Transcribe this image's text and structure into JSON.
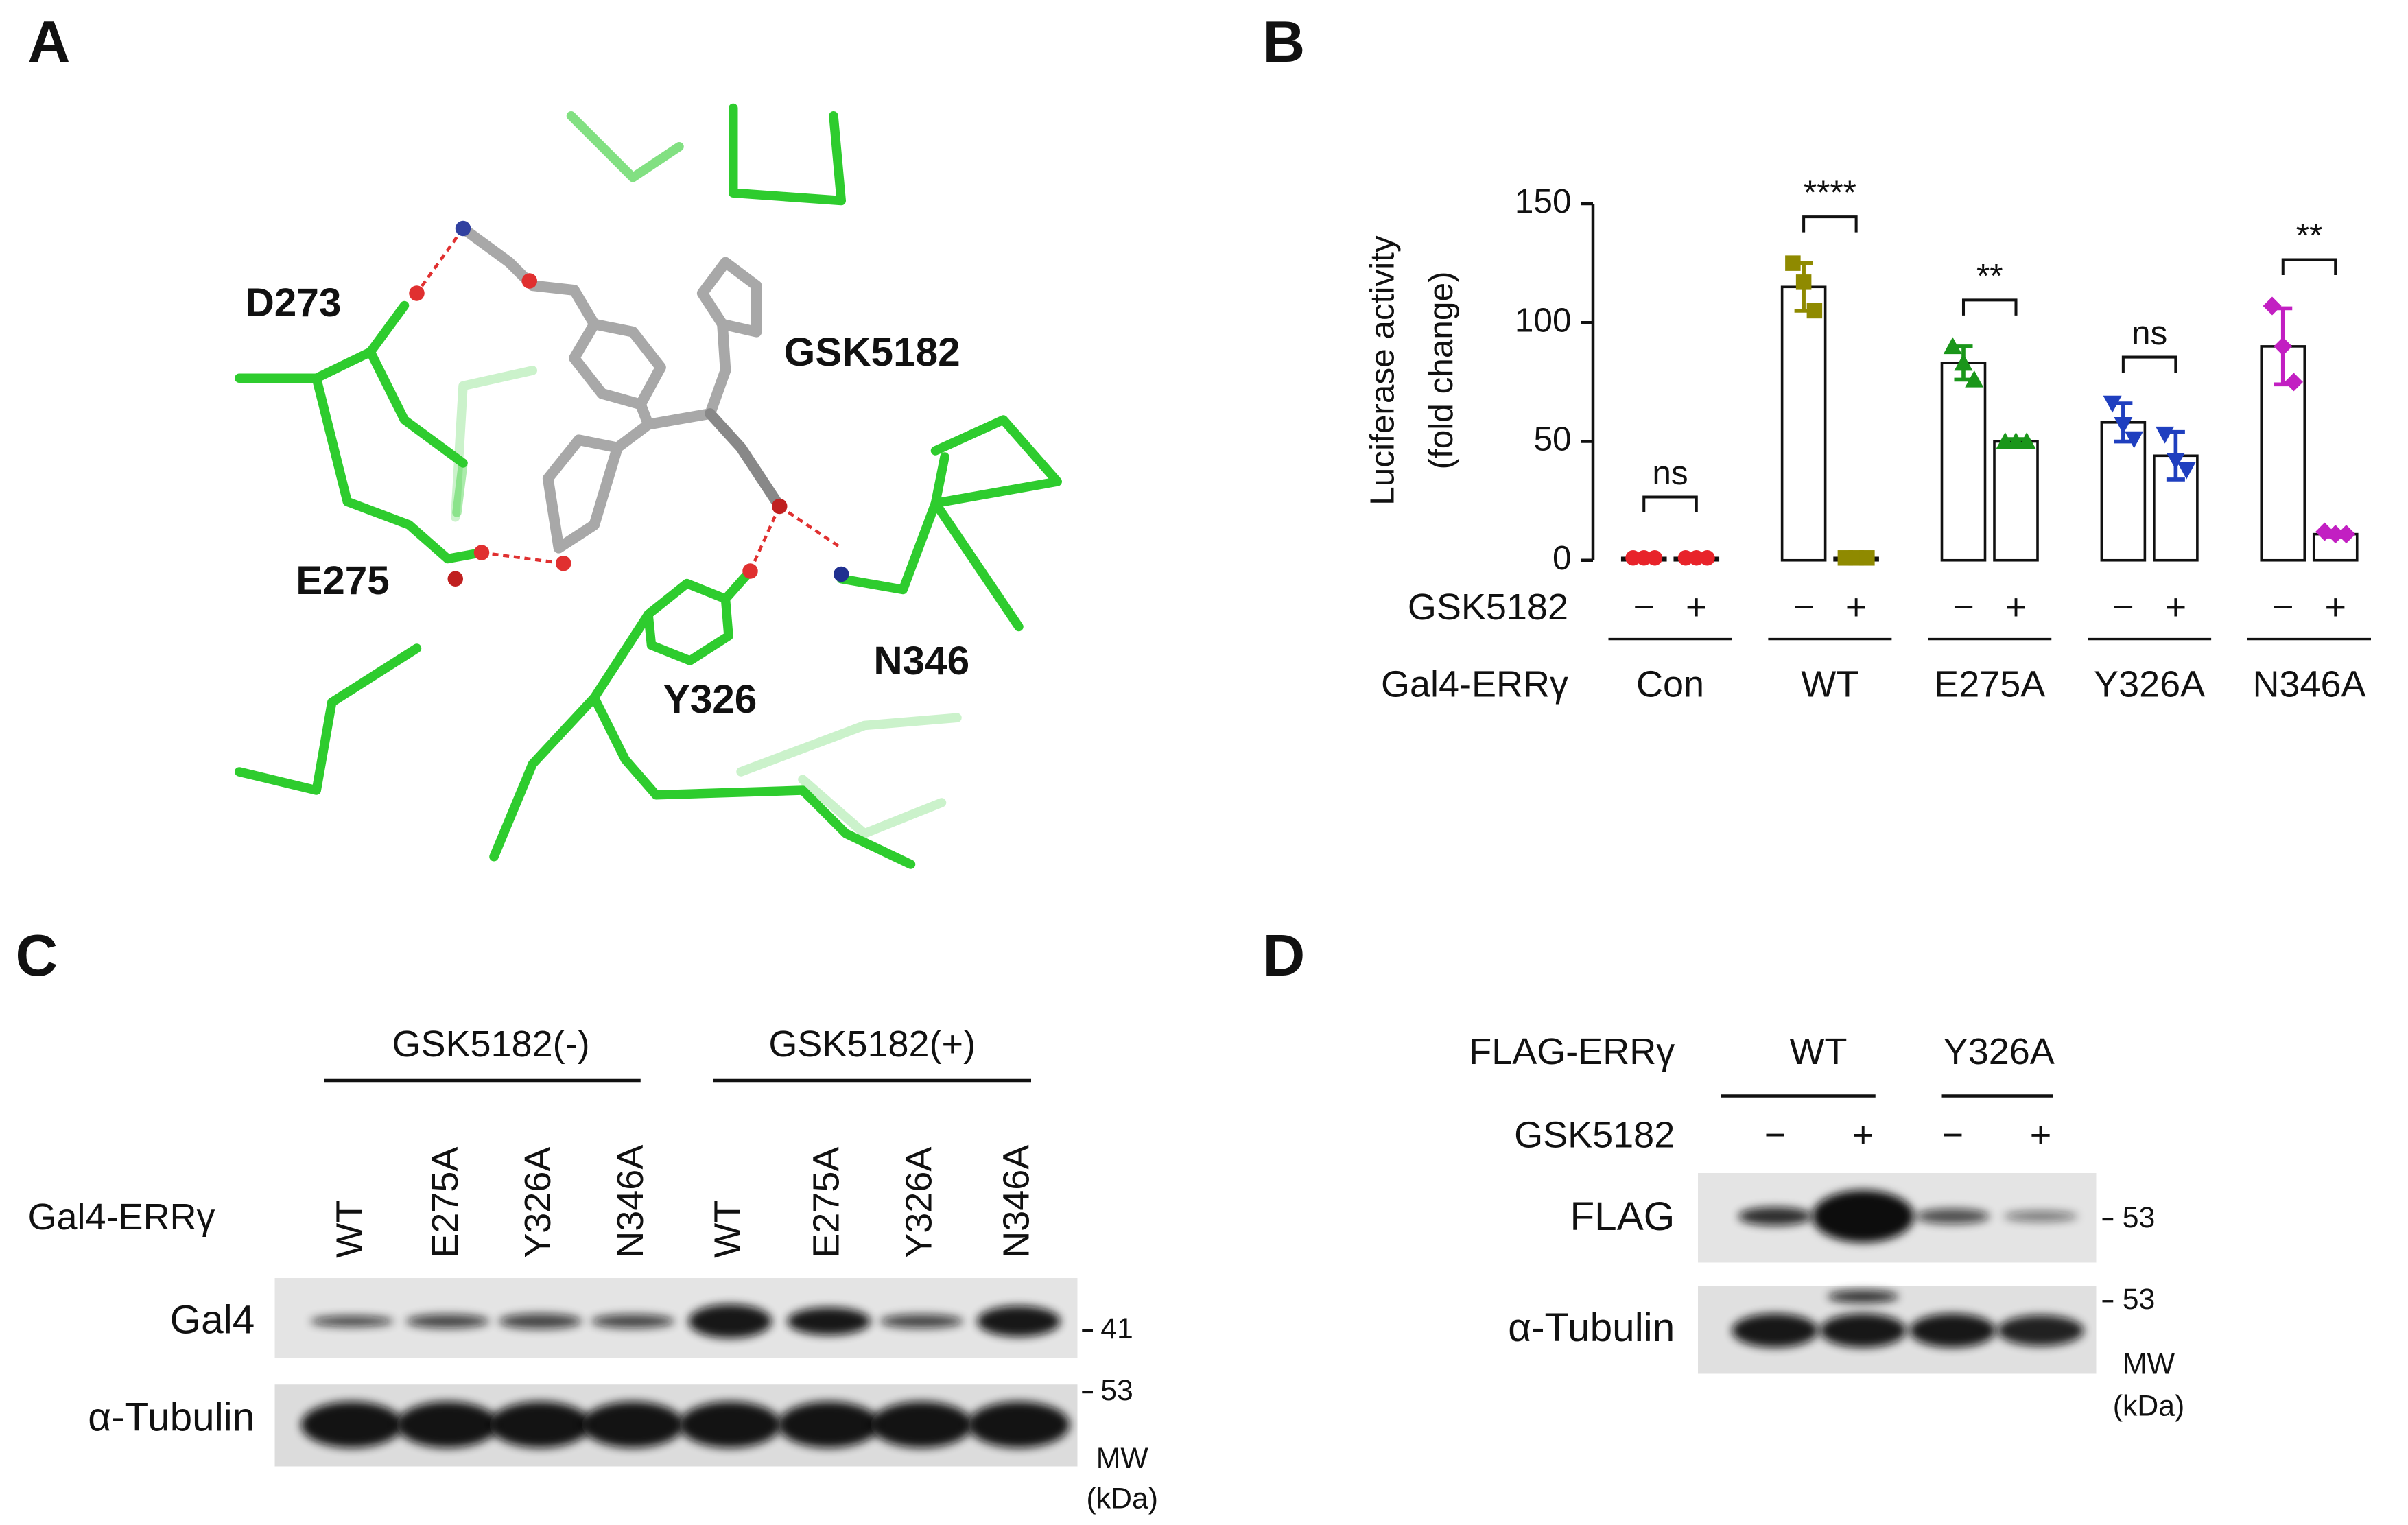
{
  "panel_a": {
    "letter": "A",
    "labels": [
      "D273",
      "GSK5182",
      "E275",
      "Y326",
      "N346"
    ]
  },
  "chart_data": {
    "type": "bar",
    "letter": "B",
    "y_label": [
      "Luciferase activity",
      "(fold change)"
    ],
    "ylim": [
      0,
      150
    ],
    "yticks": [
      0,
      50,
      100,
      150
    ],
    "row_labels": [
      "GSK5182",
      "Gal4-ERRγ"
    ],
    "treatments": [
      "−",
      "+"
    ],
    "groups": [
      {
        "name": "Con",
        "color": "#e8232a",
        "marker": "circle",
        "significance": "ns",
        "values": [
          1,
          1
        ],
        "errors": [
          0,
          0
        ],
        "points": [
          [
            1,
            1,
            1
          ],
          [
            1,
            1,
            1
          ]
        ]
      },
      {
        "name": "WT",
        "color": "#8f8a00",
        "marker": "square",
        "significance": "****",
        "values": [
          115,
          1
        ],
        "errors": [
          10,
          0
        ],
        "points": [
          [
            125,
            117,
            105
          ],
          [
            1,
            1,
            1
          ]
        ]
      },
      {
        "name": "E275A",
        "color": "#1a961a",
        "marker": "triangle-up",
        "significance": "**",
        "values": [
          83,
          50
        ],
        "errors": [
          7,
          1
        ],
        "points": [
          [
            90,
            83,
            76
          ],
          [
            50,
            50,
            50
          ]
        ]
      },
      {
        "name": "Y326A",
        "color": "#1f3fbf",
        "marker": "triangle-down",
        "significance": "ns",
        "values": [
          58,
          44
        ],
        "errors": [
          8,
          10
        ],
        "points": [
          [
            66,
            57,
            51
          ],
          [
            53,
            42,
            38
          ]
        ]
      },
      {
        "name": "N346A",
        "color": "#c21fc2",
        "marker": "diamond",
        "significance": "**",
        "values": [
          90,
          11
        ],
        "errors": [
          16,
          1
        ],
        "points": [
          [
            107,
            90,
            75
          ],
          [
            12,
            11,
            11
          ]
        ]
      }
    ]
  },
  "panel_c": {
    "letter": "C",
    "groups": [
      "GSK5182(-)",
      "GSK5182(+)"
    ],
    "row_header": "Gal4-ERRγ",
    "lanes": [
      "WT",
      "E275A",
      "Y326A",
      "N346A",
      "WT",
      "E275A",
      "Y326A",
      "N346A"
    ],
    "blots": [
      "Gal4",
      "α-Tubulin"
    ],
    "mw_markers": [
      "41",
      "53"
    ],
    "mw_label": [
      "MW",
      "(kDa)"
    ]
  },
  "panel_d": {
    "letter": "D",
    "row_headers": [
      "FLAG-ERRγ",
      "GSK5182"
    ],
    "groups": [
      "WT",
      "Y326A"
    ],
    "treatment": [
      "−",
      "+",
      "−",
      "+"
    ],
    "blots": [
      "FLAG",
      "α-Tubulin"
    ],
    "mw_markers": [
      "53",
      "53"
    ],
    "mw_label": [
      "MW",
      "(kDa)"
    ]
  }
}
